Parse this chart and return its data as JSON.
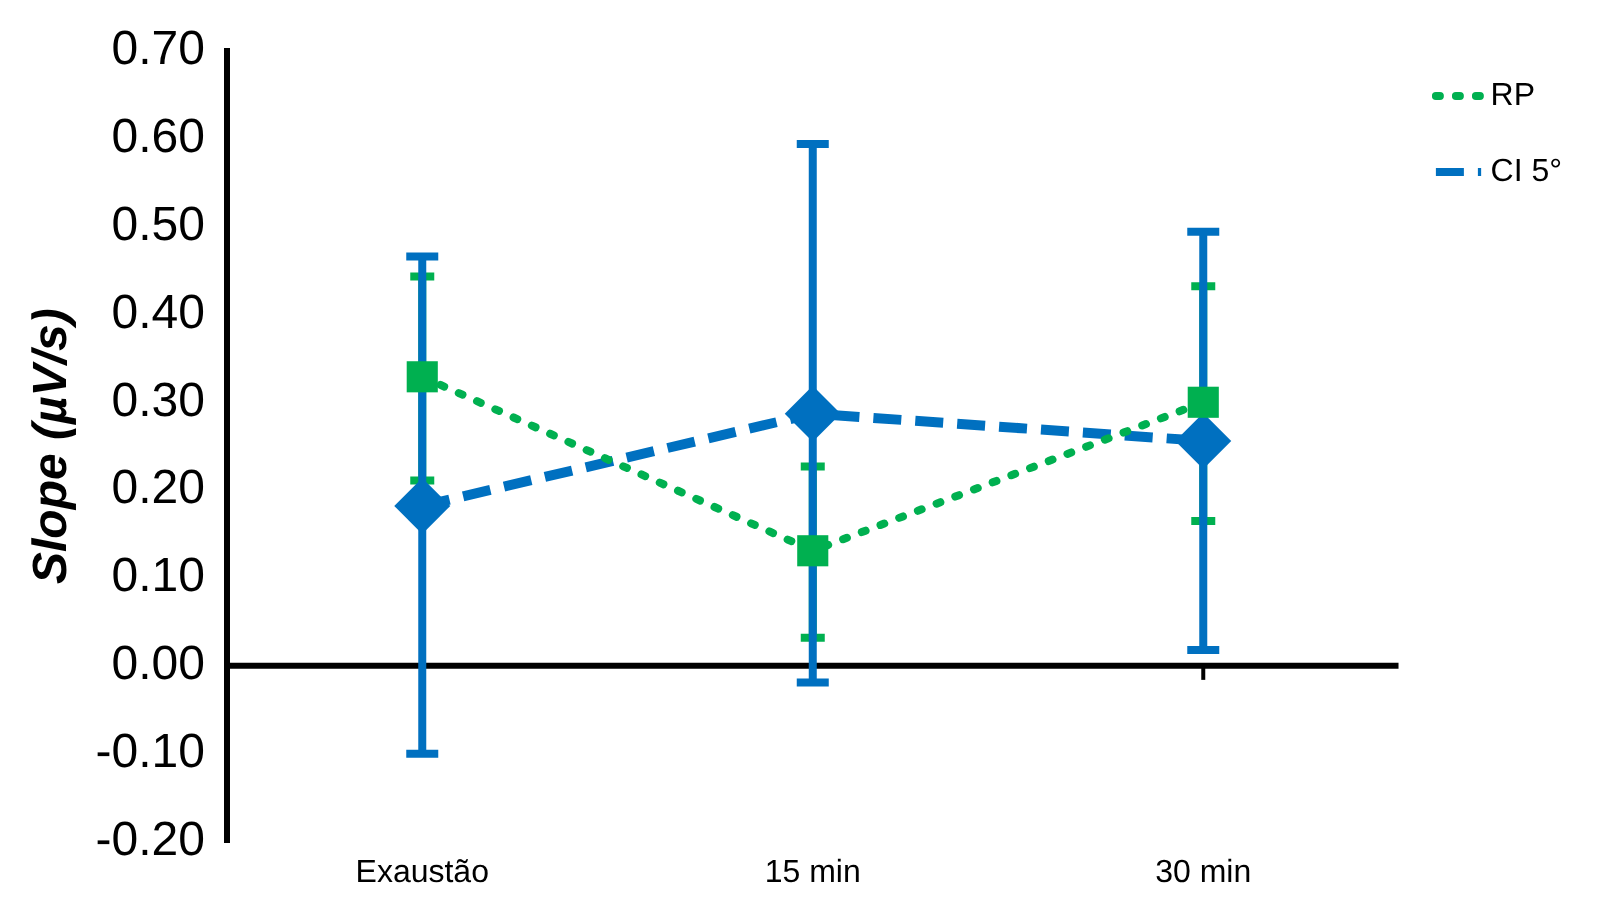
{
  "chart_data": {
    "type": "line",
    "ylabel": "Slope (µV/s)",
    "categories": [
      "Exaustão",
      "15 min",
      "30 min"
    ],
    "series": [
      {
        "name": "RP",
        "color": "#00b050",
        "values": [
          0.329,
          0.131,
          0.3
        ],
        "errors": [
          [
            0.211,
            0.443
          ],
          [
            0.032,
            0.227
          ],
          [
            0.165,
            0.432
          ]
        ],
        "marker": "square",
        "line_style": "dotted"
      },
      {
        "name": "CI 5°",
        "color": "#0070c0",
        "values": [
          0.182,
          0.287,
          0.256
        ],
        "errors": [
          [
            -0.1,
            0.466
          ],
          [
            -0.019,
            0.594
          ],
          [
            0.018,
            0.494
          ]
        ],
        "marker": "diamond",
        "line_style": "dashed"
      }
    ],
    "ylim": [
      -0.2,
      0.7
    ],
    "yticks": [
      {
        "value": -0.2,
        "label": "-0.20"
      },
      {
        "value": -0.1,
        "label": "-0.10"
      },
      {
        "value": 0,
        "label": "0.00"
      },
      {
        "value": 0.1,
        "label": "0.10"
      },
      {
        "value": 0.2,
        "label": "0.20"
      },
      {
        "value": 0.3,
        "label": "0.30"
      },
      {
        "value": 0.4,
        "label": "0.40"
      },
      {
        "value": 0.5,
        "label": "0.50"
      },
      {
        "value": 0.6,
        "label": "0.60"
      },
      {
        "value": 0.7,
        "label": "0.70"
      }
    ],
    "ref_lines": [
      {
        "axis": "y",
        "value": 0,
        "color": "#000000"
      }
    ],
    "grid": false,
    "legend": "top right"
  }
}
